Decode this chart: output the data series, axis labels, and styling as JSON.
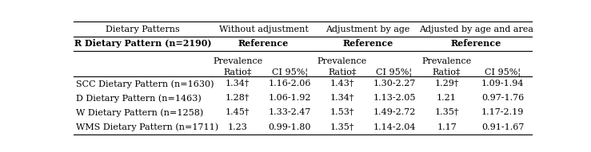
{
  "col_headers_row1": [
    "Dietary Patterns",
    "Without adjustment",
    "Adjustment by age",
    "Adjusted by age and area"
  ],
  "col_headers_row2": [
    "R Dietary Pattern (n=2190)",
    "Reference",
    "Reference",
    "Reference"
  ],
  "col_headers_row3a": [
    "",
    "Prevalence",
    "Prevalence",
    "Prevalence"
  ],
  "col_headers_row3b": [
    "",
    "Ratio‡",
    "CI 95%¦",
    "Ratio‡",
    "CI 95%¦",
    "Ratio‡",
    "CI 95%¦"
  ],
  "rows": [
    [
      "SCC Dietary Pattern (n=1630)",
      "1.34†",
      "1.16-2.06",
      "1.43†",
      "1.30-2.27",
      "1.29†",
      "1.09-1.94"
    ],
    [
      "D Dietary Pattern (n=1463)",
      "1.28†",
      "1.06-1.92",
      "1.34†",
      "1.13-2.05",
      "1.21",
      "0.97-1.76"
    ],
    [
      "W Dietary Pattern (n=1258)",
      "1.45†",
      "1.33-2.47",
      "1.53†",
      "1.49-2.72",
      "1.35†",
      "1.17-2.19"
    ],
    [
      "WMS Dietary Pattern (n=1711)",
      "1.23",
      "0.99-1.80",
      "1.35†",
      "1.14-2.04",
      "1.17",
      "0.91-1.67"
    ]
  ],
  "background": "#ffffff",
  "text_color": "#000000",
  "font_size": 8.0,
  "line_color": "#000000"
}
